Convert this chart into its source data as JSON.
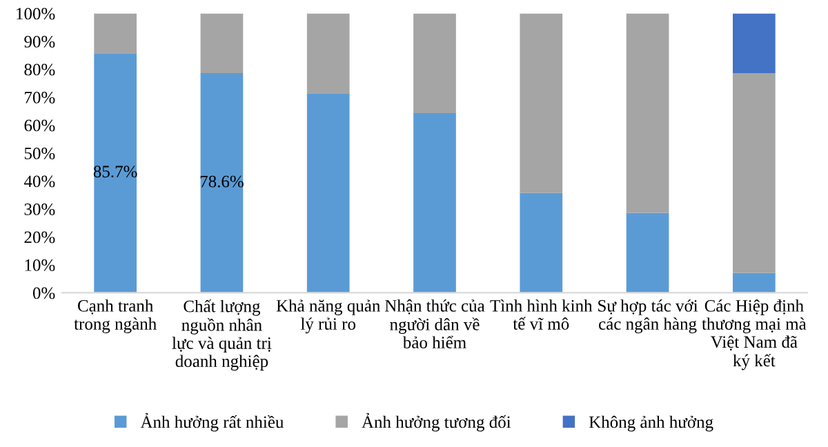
{
  "chart_data": {
    "type": "bar",
    "stacked": true,
    "categories": [
      "Cạnh tranh\ntrong ngành",
      "Chất lượng\nnguồn nhân\nlực và quản trị\ndoanh nghiệp",
      "Khả năng quản\nlý rủi ro",
      "Nhận thức của\nngười dân về\nbảo hiểm",
      "Tình hình kinh\ntế vĩ mô",
      "Sự hợp tác với\ncác ngân hàng",
      "Các Hiệp định\nthương mại mà\nViệt Nam đã\nký kết"
    ],
    "series": [
      {
        "name": "Ảnh hưởng rất nhiều",
        "color": "#5b9bd5",
        "values": [
          85.7,
          78.6,
          71.4,
          64.3,
          35.7,
          28.6,
          7.1
        ],
        "value_labels": [
          "85.7%",
          "78.6%",
          null,
          null,
          null,
          null,
          null
        ]
      },
      {
        "name": "Ảnh hưởng tương đối",
        "color": "#a5a5a5",
        "values": [
          14.3,
          21.4,
          28.6,
          35.7,
          64.3,
          71.4,
          71.5
        ]
      },
      {
        "name": "Không ảnh hưởng",
        "color": "#4472c4",
        "values": [
          0,
          0,
          0,
          0,
          0,
          0,
          21.4
        ]
      }
    ],
    "ylim": [
      0,
      100
    ],
    "yticks": [
      {
        "value": 0,
        "label": "0%"
      },
      {
        "value": 10,
        "label": "10%"
      },
      {
        "value": 20,
        "label": "20%"
      },
      {
        "value": 30,
        "label": "30%"
      },
      {
        "value": 40,
        "label": "40%"
      },
      {
        "value": 50,
        "label": "50%"
      },
      {
        "value": 60,
        "label": "60%"
      },
      {
        "value": 70,
        "label": "70%"
      },
      {
        "value": 80,
        "label": "80%"
      },
      {
        "value": 90,
        "label": "90%"
      },
      {
        "value": 100,
        "label": "100%"
      }
    ],
    "grid": false,
    "legend": "bottom"
  }
}
